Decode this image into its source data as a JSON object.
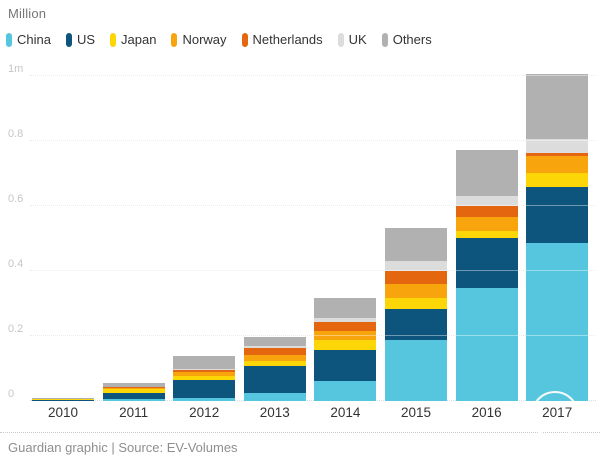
{
  "title": "Million",
  "footer": {
    "text": "Guardian graphic | Source: EV-Volumes"
  },
  "chart_data": {
    "type": "bar",
    "stacked": true,
    "title": "Million",
    "ylabel": "Million",
    "xlabel": "",
    "grid": true,
    "legend_position": "top",
    "ylim": [
      0,
      1.037
    ],
    "categories": [
      "2010",
      "2011",
      "2012",
      "2013",
      "2014",
      "2015",
      "2016",
      "2017"
    ],
    "yticks": [
      {
        "label": "0",
        "value": 0.0
      },
      {
        "label": "0.2",
        "value": 0.2
      },
      {
        "label": "0.4",
        "value": 0.4
      },
      {
        "label": "0.6",
        "value": 0.6
      },
      {
        "label": "0.8",
        "value": 0.8
      },
      {
        "label": "1m",
        "value": 1.0
      }
    ],
    "series": [
      {
        "name": "China",
        "color": "#55c6dd",
        "values": [
          0.0,
          0.006,
          0.01,
          0.025,
          0.06,
          0.188,
          0.348,
          0.486
        ]
      },
      {
        "name": "US",
        "color": "#0e557d",
        "values": [
          0.002,
          0.018,
          0.055,
          0.082,
          0.098,
          0.094,
          0.154,
          0.172
        ]
      },
      {
        "name": "Japan",
        "color": "#fdd608",
        "values": [
          0.003,
          0.014,
          0.013,
          0.015,
          0.031,
          0.036,
          0.022,
          0.043
        ]
      },
      {
        "name": "Norway",
        "color": "#f8a40c",
        "values": [
          0.0,
          0.002,
          0.01,
          0.02,
          0.026,
          0.041,
          0.043,
          0.052
        ]
      },
      {
        "name": "Netherlands",
        "color": "#e4660e",
        "values": [
          0.0,
          0.002,
          0.006,
          0.022,
          0.029,
          0.041,
          0.032,
          0.009
        ]
      },
      {
        "name": "UK",
        "color": "#dcdcdc",
        "values": [
          0.0,
          0.001,
          0.003,
          0.004,
          0.012,
          0.031,
          0.033,
          0.043
        ]
      },
      {
        "name": "Others",
        "color": "#b1b1b1",
        "values": [
          0.001,
          0.013,
          0.04,
          0.03,
          0.062,
          0.102,
          0.14,
          0.2
        ]
      }
    ]
  }
}
